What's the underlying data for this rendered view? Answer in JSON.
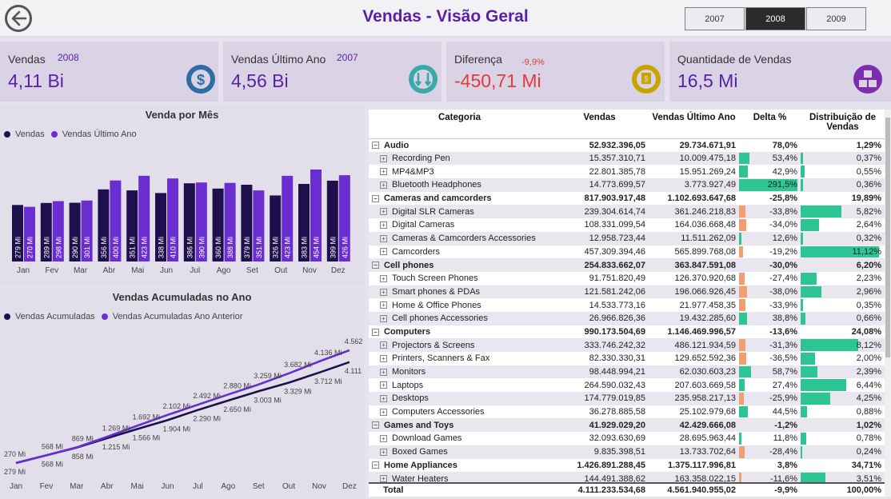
{
  "header": {
    "title": "Vendas - Visão Geral",
    "years": [
      "2007",
      "2008",
      "2009"
    ],
    "selected_year": "2008"
  },
  "cards": [
    {
      "label": "Vendas",
      "year": "2008",
      "value": "4,11 Bi",
      "icon": "dollar-gear-icon",
      "icon_color": "#2e6da4"
    },
    {
      "label": "Vendas Último Ano",
      "year": "2007",
      "value": "4,56 Bi",
      "icon": "money-down-icon",
      "icon_color": "#3aa9a9"
    },
    {
      "label": "Diferença",
      "pct": "-9,9%",
      "value": "-450,71 Mi",
      "icon": "hand-money-icon",
      "icon_color": "#c9a400"
    },
    {
      "label": "Quantidade de Vendas",
      "value": "16,5 Mi",
      "icon": "boxes-icon",
      "icon_color": "#7b2fb0"
    }
  ],
  "chart_data": [
    {
      "type": "bar",
      "title": "Venda por Mês",
      "categories": [
        "Jan",
        "Fev",
        "Mar",
        "Abr",
        "Mai",
        "Jun",
        "Jul",
        "Ago",
        "Set",
        "Out",
        "Nov",
        "Dez"
      ],
      "series": [
        {
          "name": "Vendas",
          "color": "#1e0f4d",
          "values": [
            279,
            289,
            290,
            356,
            351,
            338,
            386,
            360,
            379,
            326,
            383,
            399
          ],
          "labels": [
            "279 Mi",
            "289 Mi",
            "290 Mi",
            "356 Mi",
            "351 Mi",
            "338 Mi",
            "386 Mi",
            "360 Mi",
            "379 Mi",
            "326 Mi",
            "383 Mi",
            "399 Mi"
          ]
        },
        {
          "name": "Vendas Último Ano",
          "color": "#6a2ed0",
          "values": [
            270,
            298,
            301,
            400,
            423,
            410,
            390,
            388,
            351,
            423,
            454,
            426
          ],
          "labels": [
            "270 Mi",
            "298 Mi",
            "301 Mi",
            "400 Mi",
            "423 Mi",
            "410 Mi",
            "390 Mi",
            "388 Mi",
            "351 Mi",
            "423 Mi",
            "454 Mi",
            "426 Mi"
          ]
        }
      ]
    },
    {
      "type": "line",
      "title": "Vendas Acumuladas no Ano",
      "categories": [
        "Jan",
        "Fev",
        "Mar",
        "Abr",
        "Mai",
        "Jun",
        "Jul",
        "Ago",
        "Set",
        "Out",
        "Nov",
        "Dez"
      ],
      "series": [
        {
          "name": "Vendas Acumuladas",
          "color": "#1e0f4d",
          "values": [
            279,
            568,
            858,
            1215,
            1566,
            1904,
            2290,
            2650,
            3003,
            3329,
            3712,
            4111
          ],
          "labels": [
            "279 Mi",
            "568 Mi",
            "858 Mi",
            "1.215 Mi",
            "1.566 Mi",
            "1.904 Mi",
            "2.290 Mi",
            "2.650 Mi",
            "3.003 Mi",
            "3.329 Mi",
            "3.712 Mi",
            "4.111 Mi"
          ]
        },
        {
          "name": "Vendas Acumuladas Ano Anterior",
          "color": "#6a2ed0",
          "values": [
            270,
            568,
            869,
            1269,
            1692,
            2102,
            2492,
            2880,
            3259,
            3682,
            4136,
            4562
          ],
          "labels": [
            "270 Mi",
            "568 Mi",
            "869 Mi",
            "1.269 Mi",
            "1.692 Mi",
            "2.102 Mi",
            "2.492 Mi",
            "2.880 Mi",
            "3.259 Mi",
            "3.682 Mi",
            "4.136 Mi",
            "4.562 Mi"
          ]
        }
      ]
    }
  ],
  "table": {
    "columns": [
      "Categoria",
      "Vendas",
      "Vendas Último Ano",
      "Delta %",
      "Distribuição de Vendas"
    ],
    "rows": [
      {
        "level": 0,
        "name": "Audio",
        "vendas": "52.932.396,05",
        "ultimo": "29.734.671,91",
        "delta": "78,0%",
        "dist": "1,29%"
      },
      {
        "level": 1,
        "name": "Recording Pen",
        "vendas": "15.357.310,71",
        "ultimo": "10.009.475,18",
        "delta": "53,4%",
        "dist": "0,37%",
        "d": 53.4,
        "p": 0.37
      },
      {
        "level": 1,
        "name": "MP4&MP3",
        "vendas": "22.801.385,78",
        "ultimo": "15.951.269,24",
        "delta": "42,9%",
        "dist": "0,55%",
        "d": 42.9,
        "p": 0.55
      },
      {
        "level": 1,
        "name": "Bluetooth Headphones",
        "vendas": "14.773.699,57",
        "ultimo": "3.773.927,49",
        "delta": "291,5%",
        "dist": "0,36%",
        "d": 291.5,
        "p": 0.36
      },
      {
        "level": 0,
        "name": "Cameras and camcorders",
        "vendas": "817.903.917,48",
        "ultimo": "1.102.693.647,68",
        "delta": "-25,8%",
        "dist": "19,89%"
      },
      {
        "level": 1,
        "name": "Digital SLR Cameras",
        "vendas": "239.304.614,74",
        "ultimo": "361.246.218,83",
        "delta": "-33,8%",
        "dist": "5,82%",
        "d": -33.8,
        "p": 5.82
      },
      {
        "level": 1,
        "name": "Digital Cameras",
        "vendas": "108.331.099,54",
        "ultimo": "164.036.668,48",
        "delta": "-34,0%",
        "dist": "2,64%",
        "d": -34.0,
        "p": 2.64
      },
      {
        "level": 1,
        "name": "Cameras & Camcorders Accessories",
        "vendas": "12.958.723,44",
        "ultimo": "11.511.262,09",
        "delta": "12,6%",
        "dist": "0,32%",
        "d": 12.6,
        "p": 0.32
      },
      {
        "level": 1,
        "name": "Camcorders",
        "vendas": "457.309.394,46",
        "ultimo": "565.899.768,08",
        "delta": "-19,2%",
        "dist": "11,12%",
        "d": -19.2,
        "p": 11.12
      },
      {
        "level": 0,
        "name": "Cell phones",
        "vendas": "254.833.662,07",
        "ultimo": "363.847.591,08",
        "delta": "-30,0%",
        "dist": "6,20%"
      },
      {
        "level": 1,
        "name": "Touch Screen Phones",
        "vendas": "91.751.820,49",
        "ultimo": "126.370.920,68",
        "delta": "-27,4%",
        "dist": "2,23%",
        "d": -27.4,
        "p": 2.23
      },
      {
        "level": 1,
        "name": "Smart phones & PDAs",
        "vendas": "121.581.242,06",
        "ultimo": "196.066.926,45",
        "delta": "-38,0%",
        "dist": "2,96%",
        "d": -38.0,
        "p": 2.96
      },
      {
        "level": 1,
        "name": "Home & Office Phones",
        "vendas": "14.533.773,16",
        "ultimo": "21.977.458,35",
        "delta": "-33,9%",
        "dist": "0,35%",
        "d": -33.9,
        "p": 0.35
      },
      {
        "level": 1,
        "name": "Cell phones Accessories",
        "vendas": "26.966.826,36",
        "ultimo": "19.432.285,60",
        "delta": "38,8%",
        "dist": "0,66%",
        "d": 38.8,
        "p": 0.66
      },
      {
        "level": 0,
        "name": "Computers",
        "vendas": "990.173.504,69",
        "ultimo": "1.146.469.996,57",
        "delta": "-13,6%",
        "dist": "24,08%"
      },
      {
        "level": 1,
        "name": "Projectors & Screens",
        "vendas": "333.746.242,32",
        "ultimo": "486.121.934,59",
        "delta": "-31,3%",
        "dist": "8,12%",
        "d": -31.3,
        "p": 8.12
      },
      {
        "level": 1,
        "name": "Printers, Scanners & Fax",
        "vendas": "82.330.330,31",
        "ultimo": "129.652.592,36",
        "delta": "-36,5%",
        "dist": "2,00%",
        "d": -36.5,
        "p": 2.0
      },
      {
        "level": 1,
        "name": "Monitors",
        "vendas": "98.448.994,21",
        "ultimo": "62.030.603,23",
        "delta": "58,7%",
        "dist": "2,39%",
        "d": 58.7,
        "p": 2.39
      },
      {
        "level": 1,
        "name": "Laptops",
        "vendas": "264.590.032,43",
        "ultimo": "207.603.669,58",
        "delta": "27,4%",
        "dist": "6,44%",
        "d": 27.4,
        "p": 6.44
      },
      {
        "level": 1,
        "name": "Desktops",
        "vendas": "174.779.019,85",
        "ultimo": "235.958.217,13",
        "delta": "-25,9%",
        "dist": "4,25%",
        "d": -25.9,
        "p": 4.25
      },
      {
        "level": 1,
        "name": "Computers Accessories",
        "vendas": "36.278.885,58",
        "ultimo": "25.102.979,68",
        "delta": "44,5%",
        "dist": "0,88%",
        "d": 44.5,
        "p": 0.88
      },
      {
        "level": 0,
        "name": "Games and Toys",
        "vendas": "41.929.029,20",
        "ultimo": "42.429.666,08",
        "delta": "-1,2%",
        "dist": "1,02%"
      },
      {
        "level": 1,
        "name": "Download Games",
        "vendas": "32.093.630,69",
        "ultimo": "28.695.963,44",
        "delta": "11,8%",
        "dist": "0,78%",
        "d": 11.8,
        "p": 0.78
      },
      {
        "level": 1,
        "name": "Boxed Games",
        "vendas": "9.835.398,51",
        "ultimo": "13.733.702,64",
        "delta": "-28,4%",
        "dist": "0,24%",
        "d": -28.4,
        "p": 0.24
      },
      {
        "level": 0,
        "name": "Home Appliances",
        "vendas": "1.426.891.288,45",
        "ultimo": "1.375.117.996,81",
        "delta": "3,8%",
        "dist": "34,71%"
      },
      {
        "level": 1,
        "name": "Water Heaters",
        "vendas": "144.491.388,62",
        "ultimo": "163.358.022,15",
        "delta": "-11,6%",
        "dist": "3,51%",
        "d": -11.6,
        "p": 3.51
      }
    ],
    "total": {
      "name": "Total",
      "vendas": "4.111.233.534,68",
      "ultimo": "4.561.940.955,02",
      "delta": "-9,9%",
      "dist": "100,00%"
    },
    "pos_color": "#2dc594",
    "neg_color": "#f0a070"
  }
}
